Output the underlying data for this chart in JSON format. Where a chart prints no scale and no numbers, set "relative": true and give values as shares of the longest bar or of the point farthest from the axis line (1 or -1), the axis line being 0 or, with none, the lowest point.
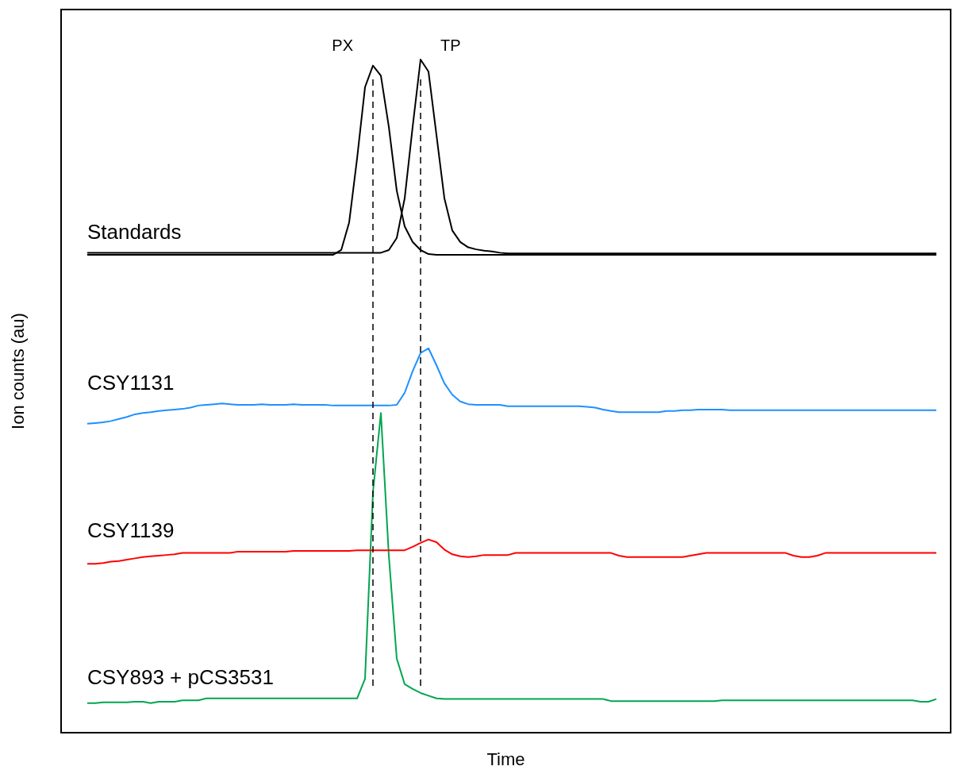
{
  "chart_data": {
    "type": "line",
    "relative": true,
    "xlabel": "Time",
    "ylabel": "Ion counts (au)",
    "marker": "none",
    "line_style": "solid",
    "categories": [
      null,
      null,
      null,
      null,
      null,
      null,
      null,
      null,
      null,
      null,
      null,
      null,
      null,
      null,
      null,
      null,
      null,
      null,
      null,
      null,
      null,
      null,
      null,
      null,
      null,
      null,
      null,
      null,
      null,
      null,
      null,
      null,
      null,
      null,
      null,
      null,
      null,
      null,
      null,
      null,
      null,
      null,
      null,
      null,
      null,
      null,
      null,
      null,
      null,
      null,
      null,
      null,
      null,
      null,
      null,
      null,
      null,
      null,
      null,
      null,
      null,
      null,
      null,
      null,
      null,
      null,
      null,
      null,
      null,
      null,
      null,
      null,
      null,
      null,
      null,
      null,
      null,
      null,
      null,
      null,
      null,
      null,
      null,
      null,
      null,
      null,
      null,
      null,
      null,
      null,
      null,
      null,
      null,
      null,
      null,
      null,
      null,
      null,
      null,
      null,
      null,
      null,
      null,
      null,
      null,
      null,
      null,
      null
    ],
    "series": [
      {
        "name": "Standards",
        "color": "#000000",
        "values": [
          0.71,
          0.71,
          0.71,
          0.71,
          0.71,
          0.71,
          0.71,
          0.71,
          0.71,
          0.71,
          0.71,
          0.71,
          0.71,
          0.71,
          0.71,
          0.71,
          0.71,
          0.71,
          0.71,
          0.71,
          0.71,
          0.71,
          0.71,
          0.71,
          0.71,
          0.71,
          0.71,
          0.71,
          0.71,
          0.71,
          0.71,
          0.71,
          0.717,
          0.758,
          0.853,
          0.959,
          0.991,
          0.976,
          0.9,
          0.805,
          0.752,
          0.729,
          0.717,
          0.711,
          0.71,
          0.71,
          0.71,
          0.71,
          0.71,
          0.71,
          0.71,
          0.71,
          0.71,
          0.71,
          0.71,
          0.71,
          0.71,
          0.71,
          0.71,
          0.71,
          0.71,
          0.71,
          0.71,
          0.71,
          0.71,
          0.71,
          0.71,
          0.71,
          0.71,
          0.71,
          0.71,
          0.71,
          0.71,
          0.71,
          0.71,
          0.71,
          0.71,
          0.71,
          0.71,
          0.71,
          0.71,
          0.71,
          0.71,
          0.71,
          0.71,
          0.71,
          0.71,
          0.71,
          0.71,
          0.71,
          0.71,
          0.71,
          0.71,
          0.71,
          0.71,
          0.71,
          0.71,
          0.71,
          0.71,
          0.71,
          0.71,
          0.71,
          0.71,
          0.71,
          0.71,
          0.71,
          0.71,
          0.71
        ]
      },
      {
        "color": "#000000",
        "values": [
          0.713,
          0.713,
          0.713,
          0.713,
          0.713,
          0.713,
          0.713,
          0.713,
          0.713,
          0.713,
          0.713,
          0.713,
          0.713,
          0.713,
          0.713,
          0.713,
          0.713,
          0.713,
          0.713,
          0.713,
          0.713,
          0.713,
          0.713,
          0.713,
          0.713,
          0.713,
          0.713,
          0.713,
          0.713,
          0.713,
          0.713,
          0.713,
          0.713,
          0.713,
          0.713,
          0.713,
          0.713,
          0.713,
          0.717,
          0.735,
          0.794,
          0.9,
          1,
          0.982,
          0.888,
          0.794,
          0.746,
          0.729,
          0.721,
          0.718,
          0.716,
          0.715,
          0.713,
          0.712,
          0.712,
          0.712,
          0.712,
          0.712,
          0.712,
          0.712,
          0.712,
          0.712,
          0.712,
          0.712,
          0.712,
          0.712,
          0.712,
          0.712,
          0.712,
          0.712,
          0.712,
          0.712,
          0.712,
          0.712,
          0.712,
          0.712,
          0.712,
          0.712,
          0.712,
          0.712,
          0.712,
          0.712,
          0.712,
          0.712,
          0.712,
          0.712,
          0.712,
          0.712,
          0.712,
          0.712,
          0.712,
          0.712,
          0.712,
          0.712,
          0.712,
          0.712,
          0.712,
          0.712,
          0.712,
          0.712,
          0.712,
          0.712,
          0.712,
          0.712,
          0.712,
          0.712,
          0.712,
          0.712
        ]
      },
      {
        "name": "CSY1131",
        "color": "#1e90ff",
        "values": [
          0.459,
          0.46,
          0.461,
          0.463,
          0.466,
          0.469,
          0.473,
          0.475,
          0.476,
          0.478,
          0.479,
          0.48,
          0.481,
          0.483,
          0.486,
          0.487,
          0.488,
          0.489,
          0.488,
          0.487,
          0.487,
          0.487,
          0.488,
          0.487,
          0.487,
          0.487,
          0.488,
          0.487,
          0.487,
          0.487,
          0.487,
          0.486,
          0.486,
          0.486,
          0.486,
          0.486,
          0.486,
          0.486,
          0.486,
          0.487,
          0.505,
          0.537,
          0.564,
          0.571,
          0.546,
          0.519,
          0.502,
          0.492,
          0.488,
          0.487,
          0.487,
          0.487,
          0.487,
          0.485,
          0.485,
          0.485,
          0.485,
          0.485,
          0.485,
          0.485,
          0.485,
          0.485,
          0.485,
          0.484,
          0.483,
          0.48,
          0.478,
          0.476,
          0.476,
          0.476,
          0.476,
          0.476,
          0.476,
          0.478,
          0.478,
          0.479,
          0.479,
          0.48,
          0.48,
          0.48,
          0.48,
          0.479,
          0.479,
          0.479,
          0.479,
          0.479,
          0.479,
          0.479,
          0.479,
          0.479,
          0.479,
          0.479,
          0.479,
          0.479,
          0.479,
          0.479,
          0.479,
          0.479,
          0.479,
          0.479,
          0.479,
          0.479,
          0.479,
          0.479,
          0.479,
          0.479,
          0.479,
          0.479
        ]
      },
      {
        "name": "CSY1139",
        "color": "#ff0000",
        "values": [
          0.251,
          0.251,
          0.252,
          0.254,
          0.255,
          0.257,
          0.259,
          0.261,
          0.262,
          0.263,
          0.264,
          0.265,
          0.267,
          0.267,
          0.267,
          0.267,
          0.267,
          0.267,
          0.267,
          0.269,
          0.269,
          0.269,
          0.269,
          0.269,
          0.269,
          0.269,
          0.27,
          0.27,
          0.27,
          0.27,
          0.27,
          0.27,
          0.27,
          0.27,
          0.271,
          0.271,
          0.271,
          0.271,
          0.271,
          0.271,
          0.271,
          0.276,
          0.282,
          0.287,
          0.283,
          0.272,
          0.265,
          0.262,
          0.261,
          0.262,
          0.264,
          0.264,
          0.264,
          0.264,
          0.267,
          0.267,
          0.267,
          0.267,
          0.267,
          0.267,
          0.267,
          0.267,
          0.267,
          0.267,
          0.267,
          0.267,
          0.267,
          0.263,
          0.261,
          0.261,
          0.261,
          0.261,
          0.261,
          0.261,
          0.261,
          0.261,
          0.263,
          0.265,
          0.267,
          0.267,
          0.267,
          0.267,
          0.267,
          0.267,
          0.267,
          0.267,
          0.267,
          0.267,
          0.267,
          0.263,
          0.261,
          0.261,
          0.263,
          0.267,
          0.267,
          0.267,
          0.267,
          0.267,
          0.267,
          0.267,
          0.267,
          0.267,
          0.267,
          0.267,
          0.267,
          0.267,
          0.267,
          0.267
        ]
      },
      {
        "name": "CSY893 + pCS3531",
        "color": "#00a650",
        "values": [
          0.044,
          0.044,
          0.045,
          0.045,
          0.045,
          0.045,
          0.046,
          0.046,
          0.044,
          0.046,
          0.046,
          0.046,
          0.048,
          0.048,
          0.048,
          0.051,
          0.051,
          0.051,
          0.051,
          0.051,
          0.051,
          0.051,
          0.051,
          0.051,
          0.051,
          0.051,
          0.051,
          0.051,
          0.051,
          0.051,
          0.051,
          0.051,
          0.051,
          0.051,
          0.051,
          0.08,
          0.357,
          0.475,
          0.263,
          0.11,
          0.072,
          0.065,
          0.059,
          0.055,
          0.051,
          0.05,
          0.05,
          0.05,
          0.05,
          0.05,
          0.05,
          0.05,
          0.05,
          0.05,
          0.05,
          0.05,
          0.05,
          0.05,
          0.05,
          0.05,
          0.05,
          0.05,
          0.05,
          0.05,
          0.05,
          0.05,
          0.047,
          0.047,
          0.047,
          0.047,
          0.047,
          0.047,
          0.047,
          0.047,
          0.047,
          0.047,
          0.047,
          0.047,
          0.047,
          0.047,
          0.048,
          0.048,
          0.048,
          0.048,
          0.048,
          0.048,
          0.048,
          0.048,
          0.048,
          0.048,
          0.048,
          0.048,
          0.048,
          0.048,
          0.048,
          0.048,
          0.048,
          0.048,
          0.048,
          0.048,
          0.048,
          0.048,
          0.048,
          0.048,
          0.048,
          0.046,
          0.046,
          0.05
        ]
      }
    ],
    "annotations": [
      "PX",
      "TP"
    ]
  }
}
